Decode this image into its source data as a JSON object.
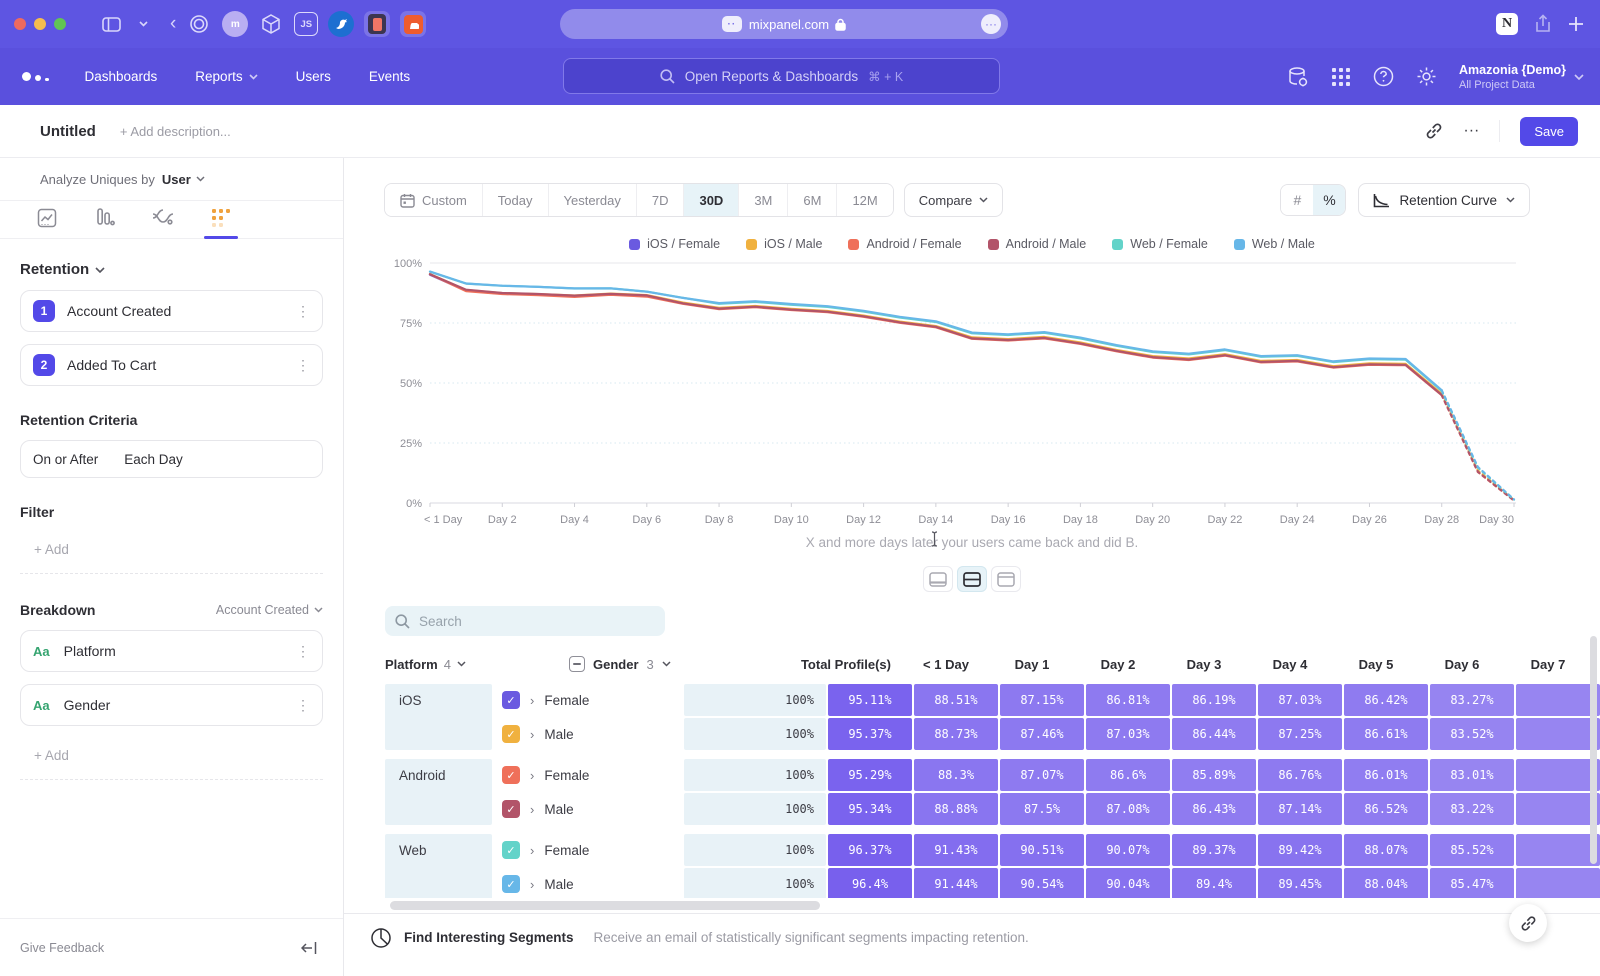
{
  "browser": {
    "url": "mixpanel.com",
    "favicon_dots": "··",
    "more_glyph": "···",
    "back_glyph": "‹",
    "notion_glyph": "N",
    "app_icons": [
      "target-icon",
      "avatar-m-icon",
      "cube-icon",
      "js-icon",
      "bird-icon",
      "persona-icon",
      "soundcloud-icon"
    ],
    "js_label": "JS",
    "avatar_label": "m"
  },
  "nav": {
    "items": [
      "Dashboards",
      "Reports",
      "Users",
      "Events"
    ],
    "dropdown_items": [
      "Reports"
    ],
    "search_placeholder": "Open Reports & Dashboards",
    "search_shortcut": "⌘ + K",
    "project_name": "Amazonia {Demo}",
    "project_sub": "All Project Data"
  },
  "header": {
    "title": "Untitled",
    "description_placeholder": "+ Add description...",
    "more_glyph": "···",
    "save_label": "Save"
  },
  "sidebar": {
    "analyze_label": "Analyze Uniques by",
    "analyze_value": "User",
    "retention_label": "Retention",
    "steps": [
      {
        "num": "1",
        "label": "Account Created"
      },
      {
        "num": "2",
        "label": "Added To Cart"
      }
    ],
    "kebab_glyph": "⋮",
    "criteria_label": "Retention Criteria",
    "criteria_value_1": "On or After",
    "criteria_value_2": "Each Day",
    "filter_label": "Filter",
    "add_label": "+ Add",
    "breakdown_label": "Breakdown",
    "breakdown_scope": "Account Created",
    "breakdowns": [
      {
        "type": "Aa",
        "label": "Platform"
      },
      {
        "type": "Aa",
        "label": "Gender"
      }
    ],
    "give_feedback": "Give Feedback"
  },
  "toolbar": {
    "ranges": [
      "Custom",
      "Today",
      "Yesterday",
      "7D",
      "30D",
      "3M",
      "6M",
      "12M"
    ],
    "active_range": "30D",
    "compare_label": "Compare",
    "count_toggle": "#",
    "percent_toggle": "%",
    "active_toggle": "%",
    "view_label": "Retention Curve"
  },
  "chart_data": {
    "type": "line",
    "title": "Retention Curve",
    "x": [
      "< 1 Day",
      "Day 1",
      "Day 2",
      "Day 3",
      "Day 4",
      "Day 5",
      "Day 6",
      "Day 7",
      "Day 8",
      "Day 9",
      "Day 10",
      "Day 11",
      "Day 12",
      "Day 13",
      "Day 14",
      "Day 15",
      "Day 16",
      "Day 17",
      "Day 18",
      "Day 19",
      "Day 20",
      "Day 21",
      "Day 22",
      "Day 23",
      "Day 24",
      "Day 25",
      "Day 26",
      "Day 27",
      "Day 28",
      "Day 29",
      "Day 30"
    ],
    "x_tick_every": 2,
    "y_ticks": [
      "0%",
      "25%",
      "50%",
      "75%",
      "100%"
    ],
    "ylim": [
      0,
      100
    ],
    "grid": "dotted-horizontal",
    "legend_position": "top",
    "dashed_from_index": 28,
    "series": [
      {
        "name": "iOS / Female",
        "color": "#6a5ae0",
        "values": [
          95.11,
          88.51,
          87.15,
          86.81,
          86.19,
          87.03,
          86.42,
          83.27,
          81.1,
          81.9,
          80.7,
          79.8,
          77.9,
          75.4,
          73.5,
          68.7,
          68.0,
          68.9,
          66.6,
          63.5,
          60.9,
          59.9,
          61.7,
          58.9,
          59.3,
          56.7,
          57.9,
          57.7,
          45.2,
          13.2,
          1.1
        ]
      },
      {
        "name": "iOS / Male",
        "color": "#f0b13f",
        "values": [
          95.37,
          88.73,
          87.46,
          87.03,
          86.44,
          87.25,
          86.61,
          83.52,
          81.3,
          82.1,
          80.9,
          80.0,
          78.1,
          75.6,
          73.7,
          69.0,
          68.3,
          69.2,
          66.9,
          63.8,
          61.2,
          60.2,
          62.0,
          59.2,
          59.6,
          57.0,
          58.2,
          58.0,
          45.5,
          13.5,
          1.2
        ]
      },
      {
        "name": "Android / Female",
        "color": "#ef705a",
        "values": [
          95.29,
          88.3,
          87.07,
          86.6,
          85.89,
          86.76,
          86.01,
          83.01,
          80.8,
          81.6,
          80.4,
          79.5,
          77.6,
          75.1,
          73.2,
          68.4,
          67.7,
          68.6,
          66.3,
          63.2,
          60.6,
          59.6,
          61.4,
          58.6,
          59.0,
          56.4,
          57.6,
          57.4,
          44.9,
          12.9,
          1.0
        ]
      },
      {
        "name": "Android / Male",
        "color": "#b25469",
        "values": [
          95.34,
          88.88,
          87.5,
          87.08,
          86.43,
          87.14,
          86.52,
          83.22,
          81.0,
          81.8,
          80.6,
          79.7,
          77.8,
          75.3,
          73.4,
          68.6,
          67.9,
          68.8,
          66.5,
          63.4,
          60.8,
          59.8,
          61.6,
          58.8,
          59.2,
          56.6,
          57.8,
          57.6,
          45.0,
          13.0,
          1.1
        ]
      },
      {
        "name": "Web / Female",
        "color": "#63d3c9",
        "values": [
          96.37,
          91.43,
          90.51,
          90.07,
          89.37,
          89.42,
          88.07,
          85.52,
          83.0,
          83.8,
          82.6,
          81.7,
          79.8,
          77.3,
          75.4,
          70.7,
          70.0,
          70.9,
          68.6,
          65.5,
          62.9,
          61.9,
          63.7,
          60.9,
          61.3,
          58.7,
          59.9,
          59.7,
          46.7,
          14.7,
          1.4
        ]
      },
      {
        "name": "Web / Male",
        "color": "#67b7e8",
        "values": [
          96.4,
          91.44,
          90.54,
          90.04,
          89.4,
          89.45,
          88.04,
          85.47,
          83.3,
          84.1,
          82.9,
          82.0,
          80.1,
          77.6,
          75.7,
          71.0,
          70.3,
          71.2,
          68.9,
          65.8,
          63.2,
          62.2,
          64.0,
          61.2,
          61.6,
          59.0,
          60.2,
          60.0,
          47.0,
          15.0,
          1.5
        ]
      }
    ],
    "caption": "X and more days later your users came back and did B."
  },
  "table": {
    "search_placeholder": "Search",
    "col_platform": "Platform",
    "platform_count": "4",
    "col_gender": "Gender",
    "gender_count": "3",
    "col_total": "Total Profile(s)",
    "day_columns": [
      "< 1 Day",
      "Day 1",
      "Day 2",
      "Day 3",
      "Day 4",
      "Day 5",
      "Day 6",
      "Day 7"
    ],
    "expander_glyph": "›",
    "check_glyph": "✓",
    "groups": [
      {
        "platform": "iOS",
        "rows": [
          {
            "gender": "Female",
            "color": "#6a5ae0",
            "total": "100%",
            "values": [
              "95.11%",
              "88.51%",
              "87.15%",
              "86.81%",
              "86.19%",
              "87.03%",
              "86.42%",
              "83.27%"
            ]
          },
          {
            "gender": "Male",
            "color": "#f0b13f",
            "total": "100%",
            "values": [
              "95.37%",
              "88.73%",
              "87.46%",
              "87.03%",
              "86.44%",
              "87.25%",
              "86.61%",
              "83.52%"
            ]
          }
        ]
      },
      {
        "platform": "Android",
        "rows": [
          {
            "gender": "Female",
            "color": "#ef705a",
            "total": "100%",
            "values": [
              "95.29%",
              "88.3%",
              "87.07%",
              "86.6%",
              "85.89%",
              "86.76%",
              "86.01%",
              "83.01%"
            ]
          },
          {
            "gender": "Male",
            "color": "#b25469",
            "total": "100%",
            "values": [
              "95.34%",
              "88.88%",
              "87.5%",
              "87.08%",
              "86.43%",
              "87.14%",
              "86.52%",
              "83.22%"
            ]
          }
        ]
      },
      {
        "platform": "Web",
        "rows": [
          {
            "gender": "Female",
            "color": "#63d3c9",
            "total": "100%",
            "values": [
              "96.37%",
              "91.43%",
              "90.51%",
              "90.07%",
              "89.37%",
              "89.42%",
              "88.07%",
              "85.52%"
            ]
          },
          {
            "gender": "Male",
            "color": "#67b7e8",
            "total": "100%",
            "values": [
              "96.4%",
              "91.44%",
              "90.54%",
              "90.04%",
              "89.4%",
              "89.45%",
              "88.04%",
              "85.47%"
            ]
          }
        ]
      }
    ]
  },
  "footer": {
    "segments_title": "Find Interesting Segments",
    "segments_desc": "Receive an email of statistically significant segments impacting retention."
  },
  "colors": {
    "accent_purple": "#5349e8",
    "chrome_purple": "#5e55e2",
    "nav_purple": "#5a50dd",
    "cell_purple": "#8571ee",
    "row_bg_blue": "#e8f2f7",
    "active_tab_orange": "#f0a23e"
  }
}
